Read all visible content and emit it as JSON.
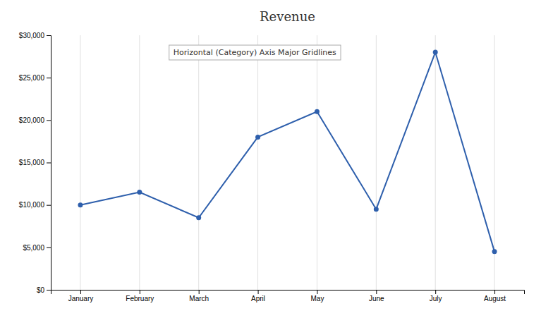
{
  "chart_data": {
    "type": "line",
    "title": "Revenue",
    "categories": [
      "January",
      "February",
      "March",
      "April",
      "May",
      "June",
      "July",
      "August"
    ],
    "values": [
      10000,
      11500,
      8500,
      18000,
      21000,
      9500,
      28000,
      4500
    ],
    "color": "#2E5FAC",
    "marker": "circle",
    "ylim": [
      0,
      30000
    ],
    "yticks": [
      {
        "value": 0,
        "label": "$0"
      },
      {
        "value": 5000,
        "label": "$5,000"
      },
      {
        "value": 10000,
        "label": "$10,000"
      },
      {
        "value": 15000,
        "label": "$15,000"
      },
      {
        "value": 20000,
        "label": "$20,000"
      },
      {
        "value": 25000,
        "label": "$25,000"
      },
      {
        "value": 30000,
        "label": "$30,000"
      }
    ],
    "grid": "x",
    "annotations": [
      "Horizontal (Category) Axis Major Gridlines"
    ]
  }
}
